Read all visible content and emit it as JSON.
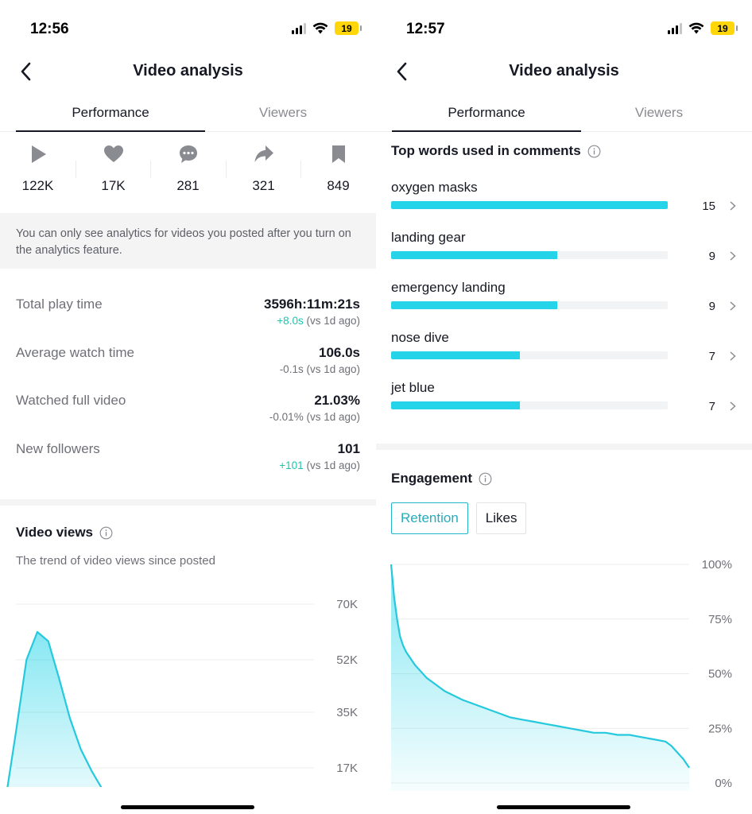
{
  "left": {
    "status": {
      "time": "12:56",
      "battery": "19"
    },
    "nav": {
      "title": "Video analysis"
    },
    "tabs": [
      {
        "label": "Performance"
      },
      {
        "label": "Viewers"
      }
    ],
    "metrics": [
      {
        "icon": "play-icon",
        "value": "122K"
      },
      {
        "icon": "heart-icon",
        "value": "17K"
      },
      {
        "icon": "comment-icon",
        "value": "281"
      },
      {
        "icon": "share-icon",
        "value": "321"
      },
      {
        "icon": "bookmark-icon",
        "value": "849"
      }
    ],
    "notice": "You can only see analytics for videos you posted after you turn on the analytics feature.",
    "stats": [
      {
        "label": "Total play time",
        "value": "3596h:11m:21s",
        "change": "+8.0s",
        "suffix": " (vs 1d ago)",
        "positive": true
      },
      {
        "label": "Average watch time",
        "value": "106.0s",
        "change": "-0.1s",
        "suffix": " (vs 1d ago)",
        "positive": false
      },
      {
        "label": "Watched full video",
        "value": "21.03%",
        "change": "-0.01%",
        "suffix": " (vs 1d ago)",
        "positive": false
      },
      {
        "label": "New followers",
        "value": "101",
        "change": "+101",
        "suffix": " (vs 1d ago)",
        "positive": true
      }
    ],
    "video_views": {
      "title": "Video views",
      "subtitle": "The trend of video views since posted"
    }
  },
  "right": {
    "status": {
      "time": "12:57",
      "battery": "19"
    },
    "nav": {
      "title": "Video analysis"
    },
    "tabs": [
      {
        "label": "Performance"
      },
      {
        "label": "Viewers"
      }
    ],
    "top_words": {
      "title": "Top words used in comments",
      "items": [
        {
          "label": "oxygen masks",
          "count": 15
        },
        {
          "label": "landing gear",
          "count": 9
        },
        {
          "label": "emergency landing",
          "count": 9
        },
        {
          "label": "nose dive",
          "count": 7
        },
        {
          "label": "jet blue",
          "count": 7
        }
      ]
    },
    "engagement": {
      "title": "Engagement",
      "toggles": [
        {
          "label": "Retention",
          "active": true
        },
        {
          "label": "Likes",
          "active": false
        }
      ]
    }
  },
  "colors": {
    "accent": "#25d4e8",
    "positive": "#20c3ad",
    "toggle_active": "#23b6c6"
  },
  "chart_data": [
    {
      "type": "area",
      "yticks": [
        "70K",
        "52K",
        "35K",
        "17K"
      ],
      "ytick_values": [
        70000,
        52000,
        35000,
        17000
      ],
      "ylim": [
        0,
        70000
      ],
      "x": [
        0,
        0.5,
        1,
        1.5,
        2,
        2.5,
        3,
        3.5,
        4,
        4.5,
        5,
        5.5,
        6
      ],
      "values": [
        5000,
        28000,
        52000,
        61000,
        58000,
        46000,
        33000,
        23000,
        16000,
        10000,
        5000,
        2000,
        0
      ]
    },
    {
      "type": "area",
      "yticks": [
        "100%",
        "75%",
        "50%",
        "25%",
        "0%"
      ],
      "ytick_values": [
        100,
        75,
        50,
        25,
        0
      ],
      "ylim": [
        0,
        100
      ],
      "x": [
        0,
        1,
        2,
        3,
        4,
        5,
        6,
        8,
        10,
        12,
        15,
        18,
        21,
        24,
        28,
        32,
        36,
        40,
        44,
        48,
        52,
        56,
        60,
        64,
        68,
        72,
        76,
        80,
        84,
        88,
        92,
        94,
        96,
        98,
        100
      ],
      "values": [
        100,
        85,
        75,
        67,
        63,
        60,
        58,
        54,
        51,
        48,
        45,
        42,
        40,
        38,
        36,
        34,
        32,
        30,
        29,
        28,
        27,
        26,
        25,
        24,
        23,
        23,
        22,
        22,
        21,
        20,
        19,
        17,
        14,
        11,
        7
      ]
    }
  ]
}
